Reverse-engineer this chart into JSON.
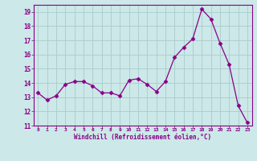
{
  "x": [
    0,
    1,
    2,
    3,
    4,
    5,
    6,
    7,
    8,
    9,
    10,
    11,
    12,
    13,
    14,
    15,
    16,
    17,
    18,
    19,
    20,
    21,
    22,
    23
  ],
  "y": [
    13.3,
    12.8,
    13.1,
    13.9,
    14.1,
    14.1,
    13.8,
    13.3,
    13.3,
    13.1,
    14.2,
    14.3,
    13.9,
    13.4,
    14.1,
    15.8,
    16.5,
    17.1,
    19.2,
    18.5,
    16.8,
    15.3,
    12.4,
    11.2
  ],
  "line_color": "#880088",
  "marker": "D",
  "marker_size": 2.5,
  "bg_color": "#cce8e8",
  "grid_color": "#aacccc",
  "xlabel": "Windchill (Refroidissement éolien,°C)",
  "xlabel_color": "#880088",
  "tick_color": "#880088",
  "spine_color": "#880088",
  "ylim": [
    11,
    19.5
  ],
  "xlim": [
    -0.5,
    23.5
  ],
  "yticks": [
    11,
    12,
    13,
    14,
    15,
    16,
    17,
    18,
    19
  ],
  "xticks": [
    0,
    1,
    2,
    3,
    4,
    5,
    6,
    7,
    8,
    9,
    10,
    11,
    12,
    13,
    14,
    15,
    16,
    17,
    18,
    19,
    20,
    21,
    22,
    23
  ],
  "xtick_labels": [
    "0",
    "1",
    "2",
    "3",
    "4",
    "5",
    "6",
    "7",
    "8",
    "9",
    "10",
    "11",
    "12",
    "13",
    "14",
    "15",
    "16",
    "17",
    "18",
    "19",
    "20",
    "21",
    "22",
    "23"
  ]
}
